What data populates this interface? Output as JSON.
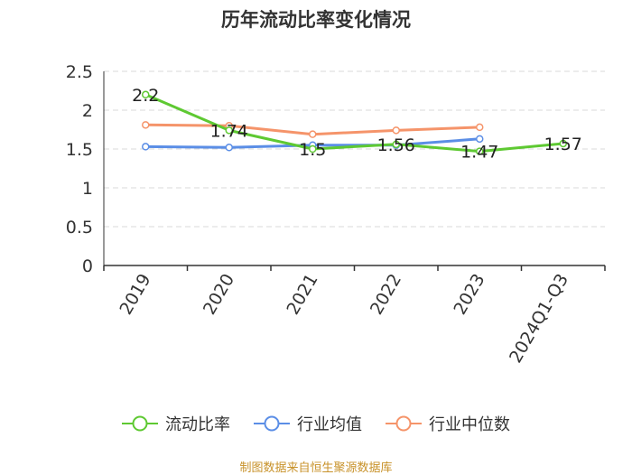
{
  "chart_data": {
    "type": "line",
    "title": "历年流动比率变化情况",
    "categories": [
      "2019",
      "2020",
      "2021",
      "2022",
      "2023",
      "2024Q1-Q3"
    ],
    "ylim": [
      0,
      2.5
    ],
    "yticks": [
      "0",
      "0.5",
      "1",
      "1.5",
      "2",
      "2.5"
    ],
    "grid": true,
    "legend_position": "bottom",
    "series": [
      {
        "name": "流动比率",
        "color": "#5ec932",
        "values": [
          2.2,
          1.74,
          1.5,
          1.56,
          1.47,
          1.57
        ],
        "labels": [
          "2.2",
          "1.74",
          "1.5",
          "1.56",
          "1.47",
          "1.57"
        ]
      },
      {
        "name": "行业均值",
        "color": "#5b8ee6",
        "values": [
          1.53,
          1.52,
          1.55,
          1.55,
          1.63,
          null
        ]
      },
      {
        "name": "行业中位数",
        "color": "#f5946a",
        "values": [
          1.81,
          1.8,
          1.69,
          1.74,
          1.78,
          null
        ]
      }
    ]
  },
  "source": "制图数据来自恒生聚源数据库"
}
